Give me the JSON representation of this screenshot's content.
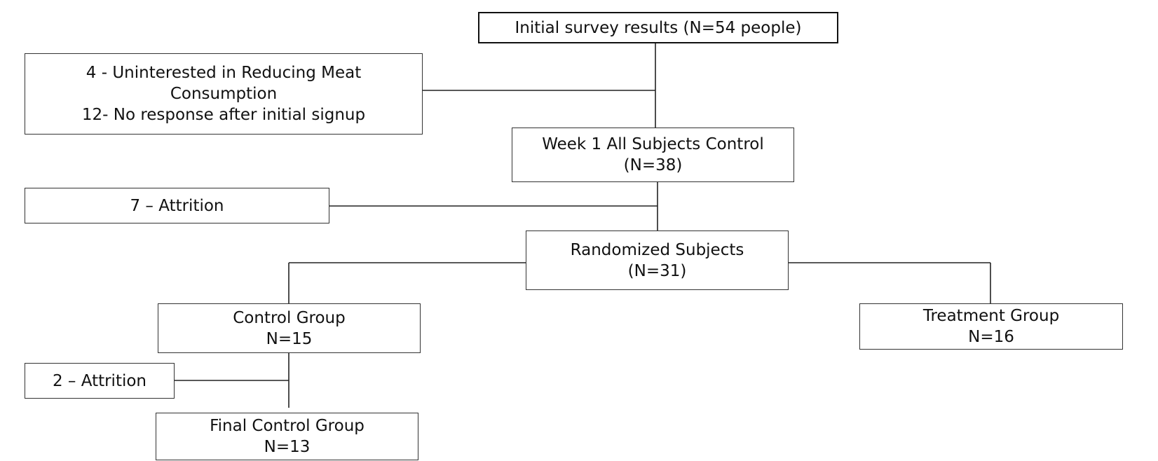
{
  "nodes": {
    "initial": {
      "lines": [
        "Initial survey results (N=54 people)"
      ]
    },
    "excluded": {
      "lines": [
        "4 - Uninterested in Reducing Meat",
        "Consumption",
        "12- No response after initial signup"
      ]
    },
    "week1": {
      "lines": [
        "Week 1 All Subjects Control",
        "(N=38)"
      ]
    },
    "attrition1": {
      "lines": [
        "7 – Attrition"
      ]
    },
    "randomized": {
      "lines": [
        "Randomized Subjects",
        "(N=31)"
      ]
    },
    "control": {
      "lines": [
        "Control Group",
        "N=15"
      ]
    },
    "treatment": {
      "lines": [
        "Treatment Group",
        "N=16"
      ]
    },
    "attrition2": {
      "lines": [
        "2 – Attrition"
      ]
    },
    "final_control": {
      "lines": [
        "Final Control Group",
        "N=13"
      ]
    }
  }
}
